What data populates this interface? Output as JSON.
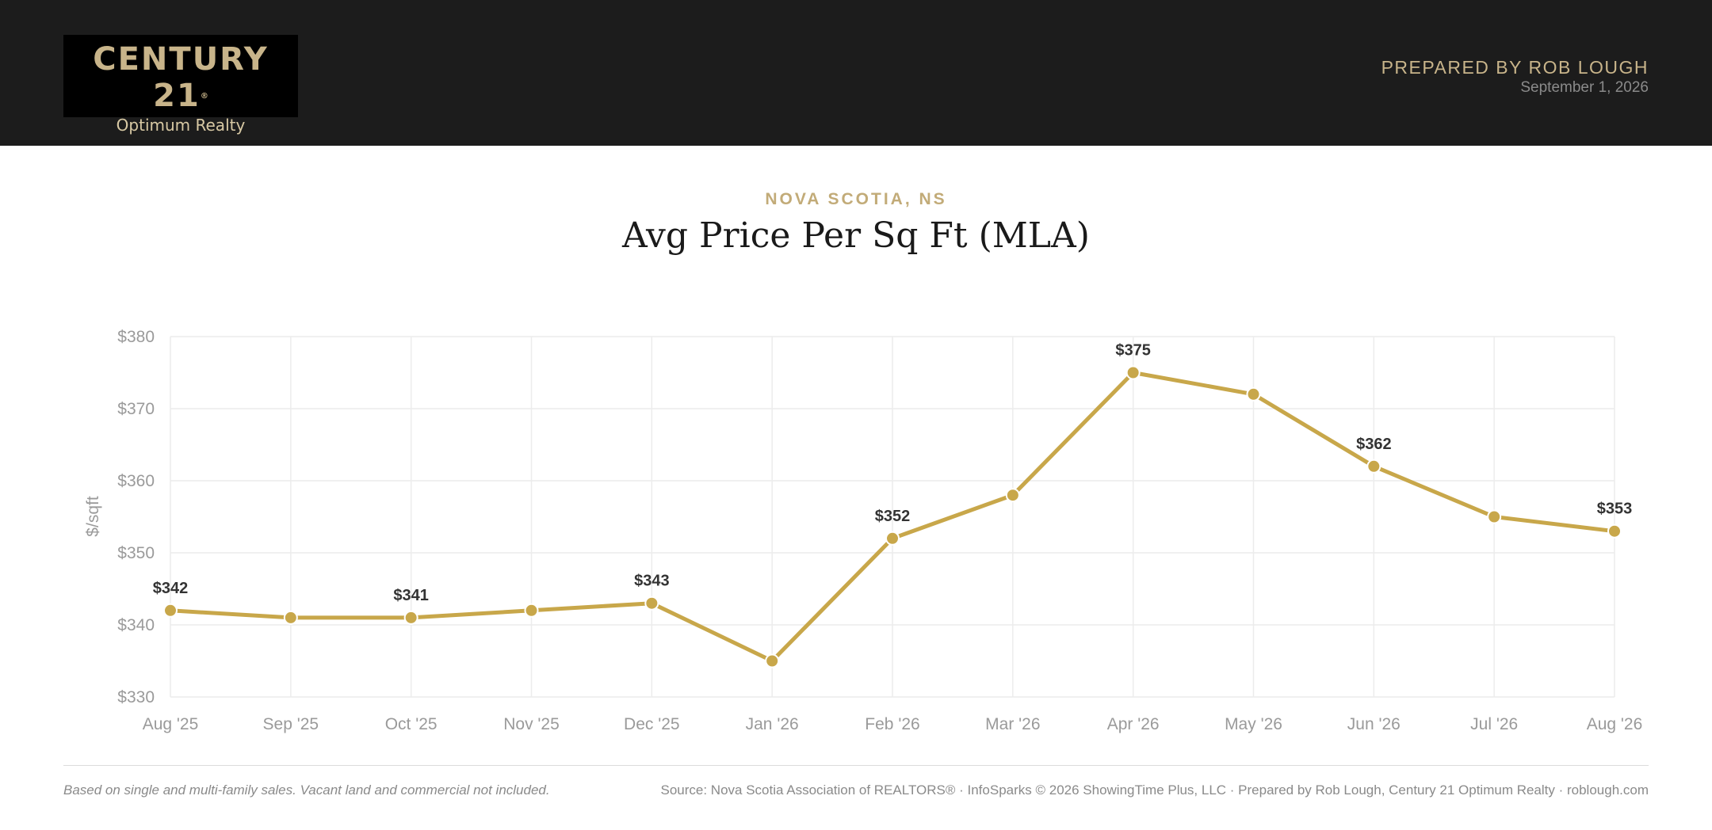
{
  "header": {
    "brand_main": "CENTURY 21",
    "brand_registered": "®",
    "brand_sub": "Optimum Realty",
    "prepared_by": "PREPARED BY ROB LOUGH",
    "date": "September 1, 2026"
  },
  "region": "NOVA SCOTIA, NS",
  "title": "Avg Price Per Sq Ft (MLA)",
  "colors": {
    "accent": "#c8a74a",
    "header_bg": "#1c1c1c",
    "gold_text": "#c2ab78"
  },
  "chart_data": {
    "type": "line",
    "title": "Avg Price Per Sq Ft (MLA)",
    "xlabel": "",
    "ylabel": "$/sqft",
    "categories": [
      "Aug '25",
      "Sep '25",
      "Oct '25",
      "Nov '25",
      "Dec '25",
      "Jan '26",
      "Feb '26",
      "Mar '26",
      "Apr '26",
      "May '26",
      "Jun '26",
      "Jul '26",
      "Aug '26"
    ],
    "values": [
      342,
      341,
      341,
      342,
      343,
      335,
      352,
      358,
      375,
      372,
      362,
      355,
      353
    ],
    "data_labels": [
      "$342",
      "",
      "$341",
      "",
      "$343",
      "",
      "$352",
      "",
      "$375",
      "",
      "$362",
      "",
      "$353"
    ],
    "ylim": [
      330,
      380
    ],
    "yticks": [
      330,
      340,
      350,
      360,
      370,
      380
    ],
    "ytick_labels": [
      "$330",
      "$340",
      "$350",
      "$360",
      "$370",
      "$380"
    ],
    "grid": true,
    "legend": "none"
  },
  "footer": {
    "note": "Based on single and multi-family sales. Vacant land and commercial not included.",
    "source": "Source: Nova Scotia Association of REALTORS® · InfoSparks © 2026 ShowingTime Plus, LLC · Prepared by Rob Lough, Century 21 Optimum Realty · roblough.com"
  }
}
